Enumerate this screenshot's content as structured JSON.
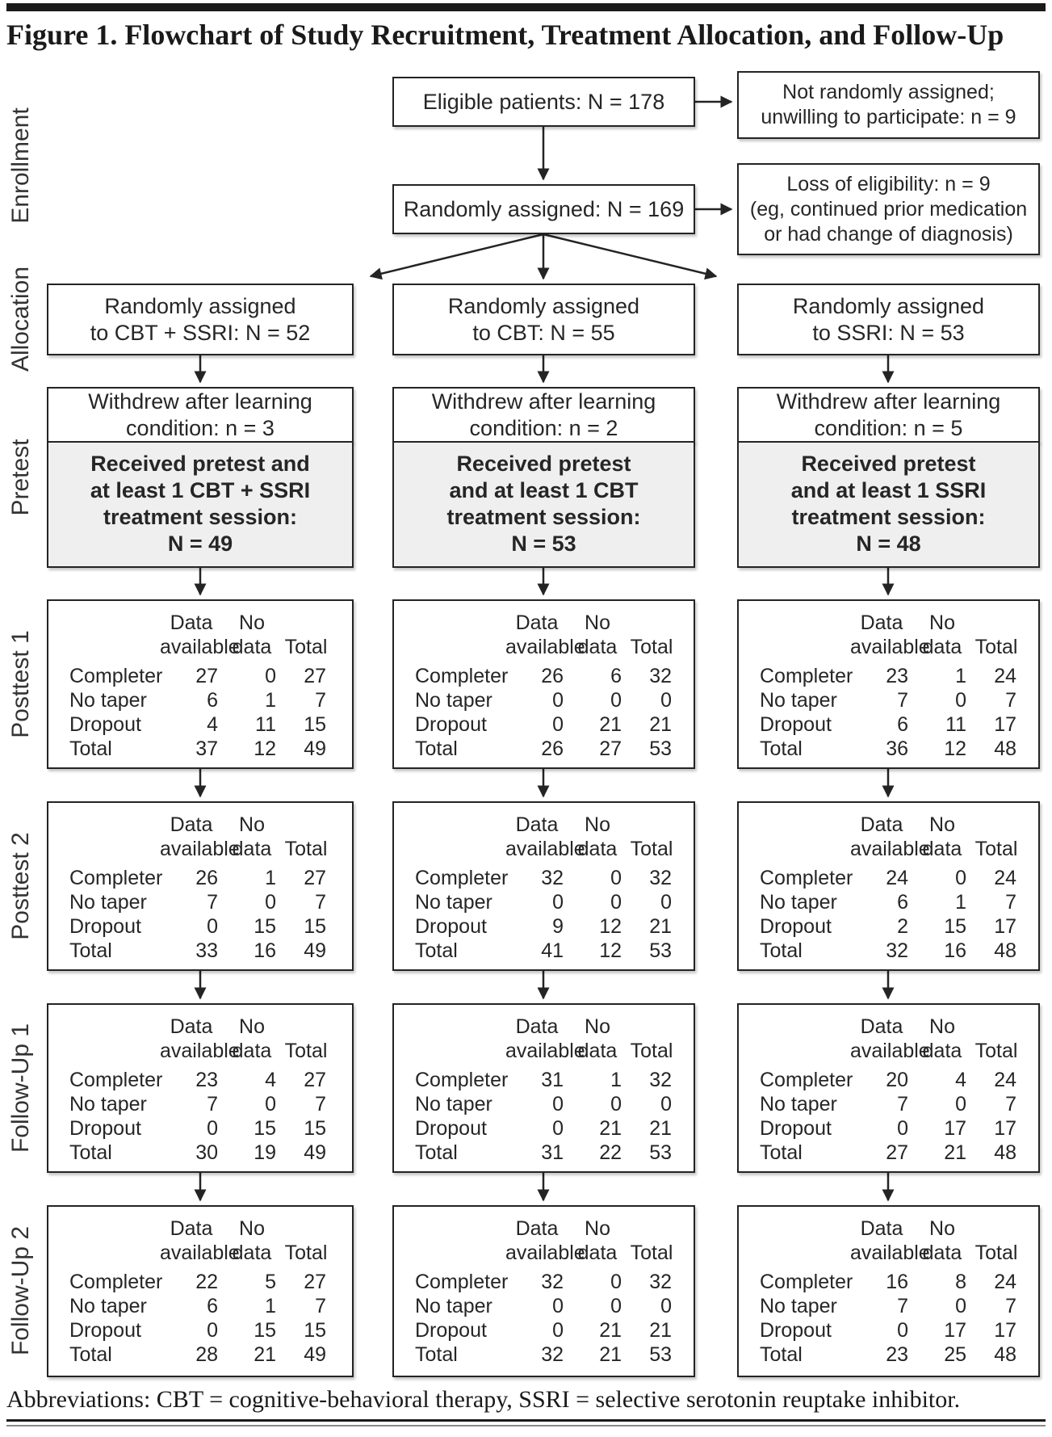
{
  "figure": {
    "title": "Figure 1. Flowchart of Study Recruitment, Treatment Allocation, and Follow-Up",
    "abbreviations": "Abbreviations: CBT = cognitive-behavioral therapy, SSRI = selective serotonin reuptake inhibitor."
  },
  "stages": [
    "Enrollment",
    "Allocation",
    "Pretest",
    "Posttest 1",
    "Posttest 2",
    "Follow-Up 1",
    "Follow-Up 2"
  ],
  "enrollment": {
    "eligible": "Eligible patients: N = 178",
    "not_randomized_lines": [
      "Not randomly assigned;",
      "unwilling to participate: n = 9"
    ],
    "randomized": "Randomly assigned: N = 169",
    "loss_lines": [
      "Loss of eligibility: n = 9",
      "(eg, continued prior medication",
      "or had change of diagnosis)"
    ]
  },
  "table_header": {
    "c1": [
      "Data",
      "available"
    ],
    "c2": [
      "No",
      "data"
    ],
    "c3": [
      "",
      "Total"
    ]
  },
  "row_labels": [
    "Completer",
    "No taper",
    "Dropout",
    "Total"
  ],
  "columns": [
    {
      "id": "cbt-ssri",
      "allocation_lines": [
        "Randomly assigned",
        "to CBT + SSRI: N = 52"
      ],
      "withdrew_lines": [
        "Withdrew after learning",
        "condition: n = 3"
      ],
      "pretest_lines": [
        "Received pretest and",
        "at least 1 CBT + SSRI",
        "treatment session:",
        "N = 49"
      ],
      "tables": [
        {
          "stage": "Posttest 1",
          "rows": [
            [
              27,
              0,
              27
            ],
            [
              6,
              1,
              7
            ],
            [
              4,
              11,
              15
            ],
            [
              37,
              12,
              49
            ]
          ]
        },
        {
          "stage": "Posttest 2",
          "rows": [
            [
              26,
              1,
              27
            ],
            [
              7,
              0,
              7
            ],
            [
              0,
              15,
              15
            ],
            [
              33,
              16,
              49
            ]
          ]
        },
        {
          "stage": "Follow-Up 1",
          "rows": [
            [
              23,
              4,
              27
            ],
            [
              7,
              0,
              7
            ],
            [
              0,
              15,
              15
            ],
            [
              30,
              19,
              49
            ]
          ]
        },
        {
          "stage": "Follow-Up 2",
          "rows": [
            [
              22,
              5,
              27
            ],
            [
              6,
              1,
              7
            ],
            [
              0,
              15,
              15
            ],
            [
              28,
              21,
              49
            ]
          ]
        }
      ]
    },
    {
      "id": "cbt",
      "allocation_lines": [
        "Randomly assigned",
        "to CBT: N = 55"
      ],
      "withdrew_lines": [
        "Withdrew after learning",
        "condition: n = 2"
      ],
      "pretest_lines": [
        "Received pretest",
        "and at least 1 CBT",
        "treatment session:",
        "N = 53"
      ],
      "tables": [
        {
          "stage": "Posttest 1",
          "rows": [
            [
              26,
              6,
              32
            ],
            [
              0,
              0,
              0
            ],
            [
              0,
              21,
              21
            ],
            [
              26,
              27,
              53
            ]
          ]
        },
        {
          "stage": "Posttest 2",
          "rows": [
            [
              32,
              0,
              32
            ],
            [
              0,
              0,
              0
            ],
            [
              9,
              12,
              21
            ],
            [
              41,
              12,
              53
            ]
          ]
        },
        {
          "stage": "Follow-Up 1",
          "rows": [
            [
              31,
              1,
              32
            ],
            [
              0,
              0,
              0
            ],
            [
              0,
              21,
              21
            ],
            [
              31,
              22,
              53
            ]
          ]
        },
        {
          "stage": "Follow-Up 2",
          "rows": [
            [
              32,
              0,
              32
            ],
            [
              0,
              0,
              0
            ],
            [
              0,
              21,
              21
            ],
            [
              32,
              21,
              53
            ]
          ]
        }
      ]
    },
    {
      "id": "ssri",
      "allocation_lines": [
        "Randomly assigned",
        "to SSRI: N = 53"
      ],
      "withdrew_lines": [
        "Withdrew after learning",
        "condition: n = 5"
      ],
      "pretest_lines": [
        "Received pretest",
        "and at least 1 SSRI",
        "treatment session:",
        "N = 48"
      ],
      "tables": [
        {
          "stage": "Posttest 1",
          "rows": [
            [
              23,
              1,
              24
            ],
            [
              7,
              0,
              7
            ],
            [
              6,
              11,
              17
            ],
            [
              36,
              12,
              48
            ]
          ]
        },
        {
          "stage": "Posttest 2",
          "rows": [
            [
              24,
              0,
              24
            ],
            [
              6,
              1,
              7
            ],
            [
              2,
              15,
              17
            ],
            [
              32,
              16,
              48
            ]
          ]
        },
        {
          "stage": "Follow-Up 1",
          "rows": [
            [
              20,
              4,
              24
            ],
            [
              7,
              0,
              7
            ],
            [
              0,
              17,
              17
            ],
            [
              27,
              21,
              48
            ]
          ]
        },
        {
          "stage": "Follow-Up 2",
          "rows": [
            [
              16,
              8,
              24
            ],
            [
              7,
              0,
              7
            ],
            [
              0,
              17,
              17
            ],
            [
              23,
              25,
              48
            ]
          ]
        }
      ]
    }
  ],
  "colors": {
    "border": "#242424",
    "pretest_fill": "#efefef",
    "bar": "#1a1a1a"
  }
}
